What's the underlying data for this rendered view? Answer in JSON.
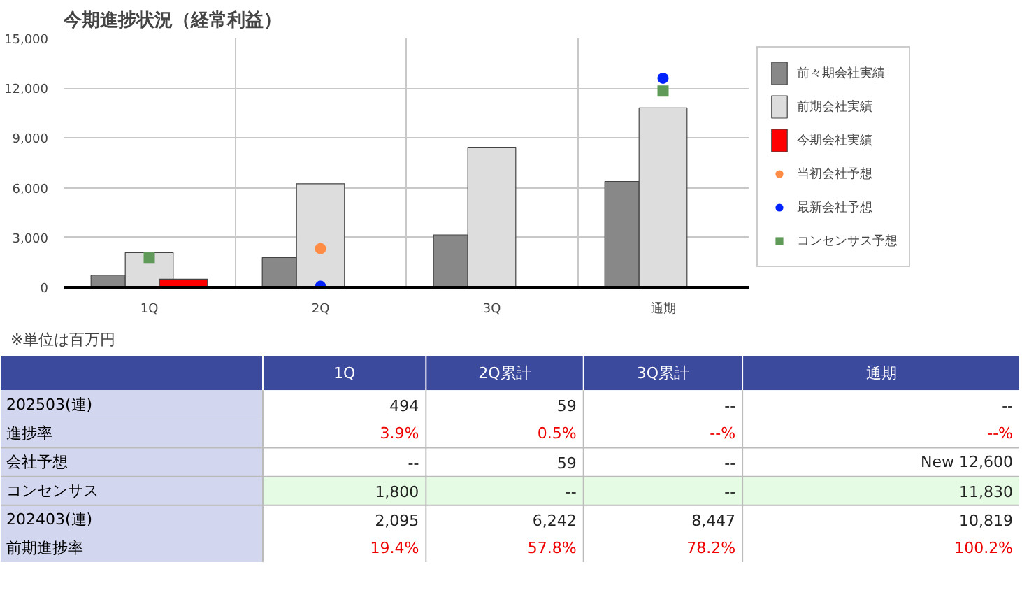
{
  "chart_data": [
    {
      "type": "bar",
      "title": "今期進捗状況（経常利益）",
      "categories": [
        "1Q",
        "2Q",
        "3Q",
        "通期"
      ],
      "series": [
        {
          "name": "前々期会社実績",
          "color": "#888888",
          "values": [
            730,
            1790,
            3160,
            6380
          ]
        },
        {
          "name": "前期会社実績",
          "color": "#dddddd",
          "values": [
            2095,
            6242,
            8447,
            10819
          ]
        },
        {
          "name": "今期会社実績",
          "color": "#ff0000",
          "values": [
            494,
            59,
            null,
            null
          ]
        },
        {
          "name": "当初会社予想",
          "type": "scatter",
          "marker": "circle",
          "color": "#ff8c45",
          "values": [
            null,
            2330,
            null,
            null
          ]
        },
        {
          "name": "最新会社予想",
          "type": "scatter",
          "marker": "circle",
          "color": "#0022ff",
          "values": [
            null,
            59,
            null,
            12600
          ]
        },
        {
          "name": "コンセンサス予想",
          "type": "scatter",
          "marker": "square",
          "color": "#5f9a58",
          "values": [
            1800,
            null,
            null,
            11830
          ]
        }
      ],
      "ylim": [
        0,
        15000
      ],
      "yticks": [
        0,
        {
          "value": 3000,
          "label": "3,000"
        },
        {
          "value": 6000,
          "label": "6,000"
        },
        {
          "value": 9000,
          "label": "9,000"
        },
        {
          "value": 12000,
          "label": "12,000"
        },
        {
          "value": 15000,
          "label": "15,000"
        }
      ],
      "grid": true,
      "legend": "right",
      "annotations": [
        "※単位は百万円"
      ]
    },
    {
      "type": "other",
      "categories": [
        "1Q",
        "2Q累計",
        "3Q累計",
        "通期"
      ],
      "annotations": [
        "202503(連)",
        "494",
        "59",
        "--",
        "--",
        "進捗率",
        "3.9%",
        "0.5%",
        "--%",
        "--%",
        "会社予想",
        "--",
        "59",
        "--",
        "New 12,600",
        "コンセンサス",
        "1,800",
        "--",
        "--",
        "11,830",
        "202403(連)",
        "2,095",
        "6,242",
        "8,447",
        "10,819",
        "前期進捗率",
        "19.4%",
        "57.8%",
        "78.2%",
        "100.2%"
      ]
    }
  ]
}
